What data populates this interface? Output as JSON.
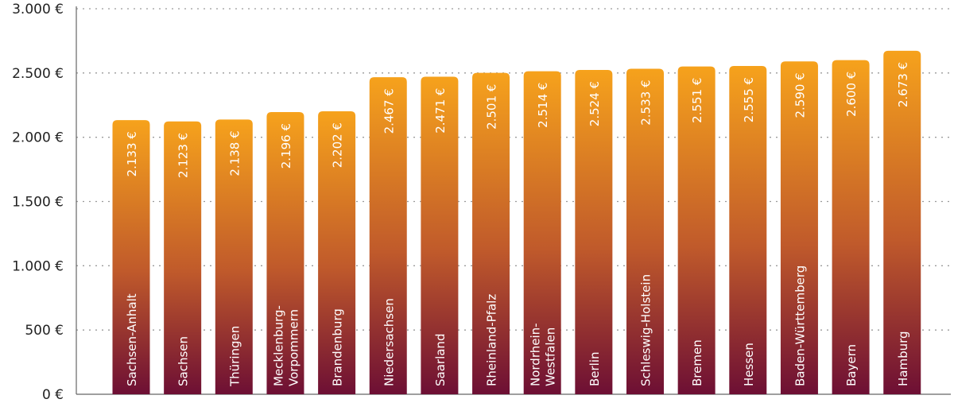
{
  "chart_data": {
    "type": "bar",
    "title": "",
    "xlabel": "",
    "ylabel": "",
    "ylim": [
      0,
      3000
    ],
    "yticks": [
      0,
      500,
      1000,
      1500,
      2000,
      2500,
      3000
    ],
    "ytick_labels": [
      "0 €",
      "500 €",
      "1.000 €",
      "1.500 €",
      "2.000 €",
      "2.500 €",
      "3.000 €"
    ],
    "grid": "horizontal-dotted",
    "legend": "none",
    "categories": [
      "Sachsen-Anhalt",
      "Sachsen",
      "Thüringen",
      "Mecklenburg-Vorpommern",
      "Brandenburg",
      "Niedersachsen",
      "Saarland",
      "Rheinland-Pfalz",
      "Nordrhein-Westfalen",
      "Berlin",
      "Schleswig-Holstein",
      "Bremen",
      "Hessen",
      "Baden-Württemberg",
      "Bayern",
      "Hamburg"
    ],
    "category_label_lines": [
      [
        "Sachsen-Anhalt"
      ],
      [
        "Sachsen"
      ],
      [
        "Thüringen"
      ],
      [
        "Mecklenburg-",
        "Vorpommern"
      ],
      [
        "Brandenburg"
      ],
      [
        "Niedersachsen"
      ],
      [
        "Saarland"
      ],
      [
        "Rheinland-Pfalz"
      ],
      [
        "Nordrhein-",
        "Westfalen"
      ],
      [
        "Berlin"
      ],
      [
        "Schleswig-Holstein"
      ],
      [
        "Bremen"
      ],
      [
        "Hessen"
      ],
      [
        "Baden-Württemberg"
      ],
      [
        "Bayern"
      ],
      [
        "Hamburg"
      ]
    ],
    "values": [
      2133,
      2123,
      2138,
      2196,
      2202,
      2467,
      2471,
      2501,
      2514,
      2524,
      2533,
      2551,
      2555,
      2590,
      2600,
      2673
    ],
    "value_labels": [
      "2.133 €",
      "2.123 €",
      "2.138 €",
      "2.196 €",
      "2.202 €",
      "2.467 €",
      "2.471 €",
      "2.501 €",
      "2.514 €",
      "2.524 €",
      "2.533 €",
      "2.551 €",
      "2.555 €",
      "2.590 €",
      "2.600 €",
      "2.673 €"
    ],
    "colors": {
      "bar_gradient_top": "#F6A21C",
      "bar_gradient_mid": "#C05A2B",
      "bar_gradient_bottom": "#6D0F34",
      "label_text": "#FFFFFF",
      "tick_text": "#222222",
      "grid": "#9A9A9A",
      "axis": "#666666"
    }
  }
}
